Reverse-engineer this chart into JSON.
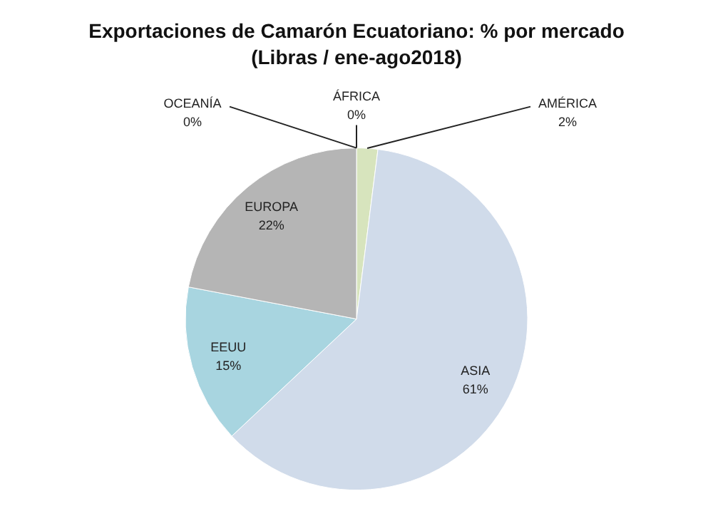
{
  "chart_data": {
    "type": "pie",
    "title": "Exportaciones de Camarón Ecuatoriano: % por mercado",
    "subtitle": "(Libras / ene-ago2018)",
    "categories": [
      "ÁFRICA",
      "AMÉRICA",
      "ASIA",
      "EEUU",
      "EUROPA",
      "OCEANÍA"
    ],
    "values": [
      0,
      2,
      61,
      15,
      22,
      0
    ],
    "value_labels": [
      "0%",
      "2%",
      "61%",
      "15%",
      "22%",
      "0%"
    ],
    "colors": [
      "#8fb1d6",
      "#d7e4bd",
      "#d0dbea",
      "#a8d5e0",
      "#b5b5b5",
      "#7f9fc6"
    ],
    "legend": false
  }
}
